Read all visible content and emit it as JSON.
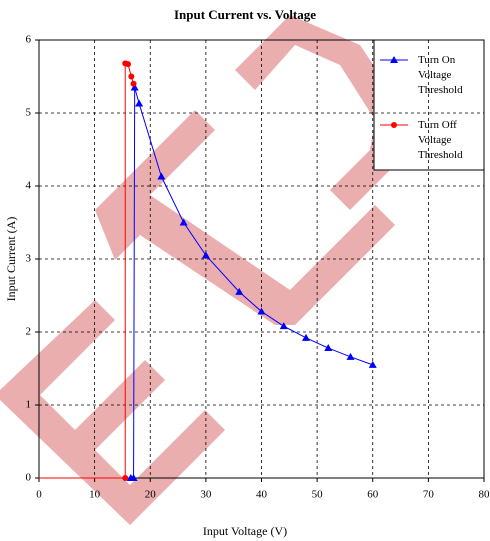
{
  "chart_data": {
    "type": "line",
    "title": "Input Current vs. Voltage",
    "xlabel": "Input Voltage (V)",
    "ylabel": "Input Current (A)",
    "xlim": [
      0,
      80
    ],
    "xticks": [
      0,
      10,
      20,
      30,
      40,
      50,
      60,
      70,
      80
    ],
    "ylim": [
      0,
      6
    ],
    "yticks": [
      0,
      1,
      2,
      3,
      4,
      5,
      6
    ],
    "grid": true,
    "series": [
      {
        "name": "Turn On Voltage Threshold",
        "color": "#0000ff",
        "marker": "triangle",
        "x": [
          0,
          16.5,
          17,
          17.2,
          18,
          22,
          26,
          30,
          36,
          40,
          44,
          48,
          52,
          56,
          60
        ],
        "values": [
          0,
          0,
          0,
          5.35,
          5.13,
          4.13,
          3.5,
          3.05,
          2.55,
          2.28,
          2.08,
          1.92,
          1.78,
          1.66,
          1.55
        ]
      },
      {
        "name": "Turn Off Voltage Threshold",
        "color": "#ff0000",
        "marker": "circle",
        "x": [
          0,
          15.5,
          15.5,
          16,
          16.6,
          17
        ],
        "values": [
          0,
          0,
          5.68,
          5.67,
          5.5,
          5.4
        ]
      }
    ]
  }
}
